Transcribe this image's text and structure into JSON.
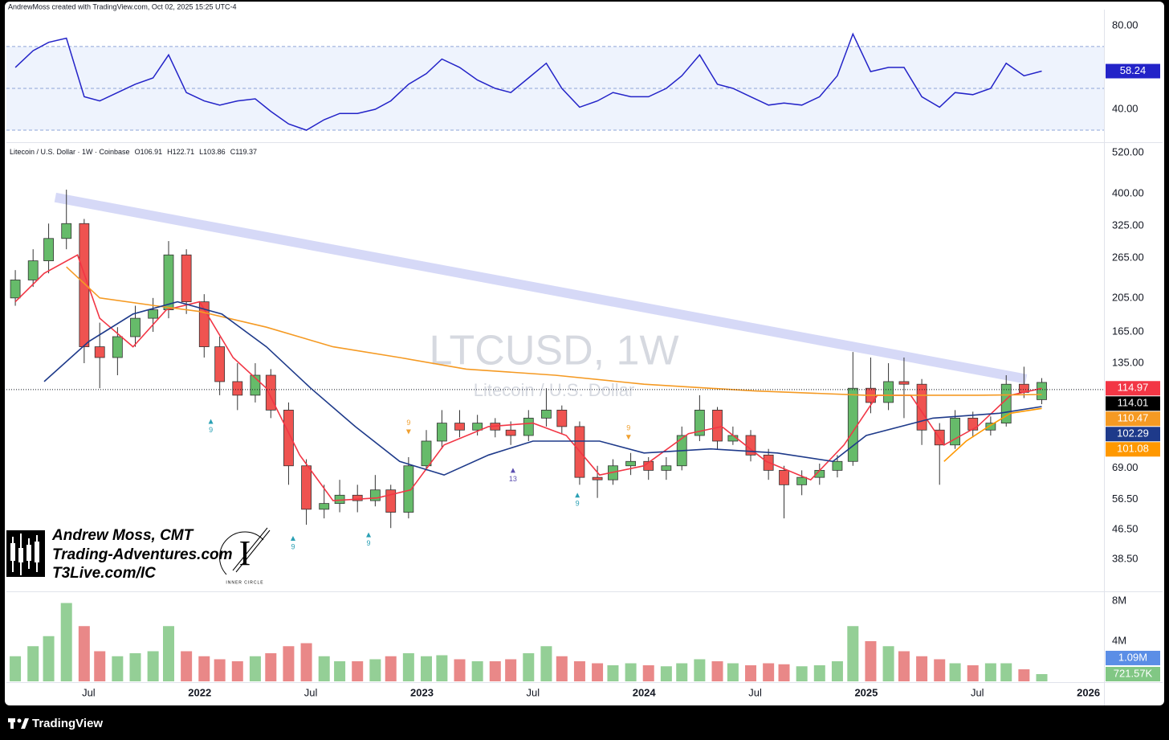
{
  "header": {
    "credit": "AndrewMoss created with TradingView.com, Oct 02, 2025 15:25 UTC-4",
    "brand": "TradingView"
  },
  "branding": {
    "name": "Andrew Moss, CMT",
    "site": "Trading-Adventures.com",
    "link": "T3Live.com/IC",
    "logo_text": "INNER CIRCLE"
  },
  "chart_data": {
    "type": "candlestick",
    "title": "LTCUSD, 1W",
    "subtitle": "Litecoin / U.S. Dollar",
    "legend_text": "Litecoin / U.S. Dollar · 1W · Coinbase",
    "ohlc_prefixes": [
      "O",
      "H",
      "L",
      "C"
    ],
    "log_scale": true,
    "grid": false,
    "up_color": "#66bb6a",
    "down_color": "#ef5350",
    "xlim": [
      2021.13,
      2026.07
    ],
    "xticks": [
      {
        "value": 2021.5,
        "label": "Jul"
      },
      {
        "value": 2022,
        "label": "2022"
      },
      {
        "value": 2022.5,
        "label": "Jul"
      },
      {
        "value": 2023,
        "label": "2023"
      },
      {
        "value": 2023.5,
        "label": "Jul"
      },
      {
        "value": 2024,
        "label": "2024"
      },
      {
        "value": 2024.5,
        "label": "Jul"
      },
      {
        "value": 2025,
        "label": "2025"
      },
      {
        "value": 2025.5,
        "label": "Jul"
      },
      {
        "value": 2026,
        "label": "2026"
      }
    ],
    "ylim": [
      31.5,
      547
    ],
    "yticks": [
      {
        "value": 520,
        "label": "520.00"
      },
      {
        "value": 400,
        "label": "400.00"
      },
      {
        "value": 325,
        "label": "325.00"
      },
      {
        "value": 265,
        "label": "265.00"
      },
      {
        "value": 205,
        "label": "205.00"
      },
      {
        "value": 165,
        "label": "165.00"
      },
      {
        "value": 135,
        "label": "135.00"
      },
      {
        "value": 69,
        "label": "69.00"
      },
      {
        "value": 56.5,
        "label": "56.50"
      },
      {
        "value": 46.5,
        "label": "46.50"
      },
      {
        "value": 38.5,
        "label": "38.50"
      }
    ],
    "x": [
      2021.17,
      2021.25,
      2021.32,
      2021.4,
      2021.48,
      2021.55,
      2021.63,
      2021.71,
      2021.79,
      2021.86,
      2021.94,
      2022.02,
      2022.09,
      2022.17,
      2022.25,
      2022.32,
      2022.4,
      2022.48,
      2022.56,
      2022.63,
      2022.71,
      2022.79,
      2022.86,
      2022.94,
      2023.02,
      2023.09,
      2023.17,
      2023.25,
      2023.33,
      2023.4,
      2023.48,
      2023.56,
      2023.63,
      2023.71,
      2023.79,
      2023.86,
      2023.94,
      2024.02,
      2024.1,
      2024.17,
      2024.25,
      2024.33,
      2024.4,
      2024.48,
      2024.56,
      2024.63,
      2024.71,
      2024.79,
      2024.87,
      2024.94,
      2025.02,
      2025.1,
      2025.17,
      2025.25,
      2025.33,
      2025.4,
      2025.48,
      2025.56,
      2025.63,
      2025.71,
      2025.79
    ],
    "open": [
      205,
      230,
      260,
      300,
      330,
      150,
      140,
      160,
      180,
      190,
      270,
      200,
      150,
      120,
      110,
      125,
      100,
      70,
      53,
      55,
      58,
      56,
      60,
      52,
      70,
      82,
      92,
      88,
      92,
      88,
      85,
      95,
      100,
      90,
      65,
      64,
      70,
      72,
      68,
      70,
      85,
      100,
      82,
      85,
      75,
      68,
      62,
      65,
      68,
      72,
      115,
      105,
      120,
      118,
      88,
      80,
      95,
      88,
      92,
      118,
      106.91
    ],
    "high": [
      245,
      280,
      330,
      410,
      340,
      175,
      170,
      195,
      205,
      295,
      280,
      210,
      160,
      135,
      135,
      130,
      105,
      73,
      62,
      64,
      62,
      66,
      62,
      74,
      88,
      100,
      100,
      97,
      95,
      93,
      100,
      115,
      103,
      93,
      70,
      73,
      76,
      74,
      74,
      90,
      110,
      102,
      90,
      88,
      78,
      70,
      68,
      71,
      75,
      145,
      140,
      135,
      140,
      122,
      92,
      100,
      99,
      96,
      125,
      132,
      122.71
    ],
    "low": [
      195,
      220,
      240,
      280,
      135,
      115,
      125,
      150,
      165,
      180,
      185,
      140,
      110,
      100,
      105,
      95,
      62,
      48,
      50,
      52,
      52,
      54,
      47,
      50,
      68,
      78,
      84,
      85,
      84,
      80,
      82,
      90,
      86,
      62,
      57,
      62,
      66,
      64,
      64,
      68,
      82,
      78,
      80,
      72,
      64,
      50,
      58,
      62,
      65,
      70,
      98,
      100,
      95,
      80,
      62,
      78,
      84,
      85,
      90,
      108,
      103.86
    ],
    "close": [
      230,
      260,
      300,
      330,
      150,
      140,
      160,
      180,
      190,
      270,
      200,
      150,
      120,
      110,
      125,
      100,
      70,
      53,
      55,
      58,
      56,
      60,
      52,
      70,
      82,
      92,
      88,
      92,
      88,
      85,
      95,
      100,
      90,
      65,
      64,
      70,
      72,
      68,
      70,
      85,
      100,
      82,
      85,
      75,
      68,
      62,
      65,
      68,
      72,
      115,
      105,
      120,
      118,
      88,
      80,
      95,
      88,
      92,
      118,
      112,
      119.37
    ],
    "last_price": 114.01,
    "series": [
      {
        "color": "#f23645",
        "x": [
          2021.17,
          2021.3,
          2021.45,
          2021.55,
          2021.7,
          2021.85,
          2022.0,
          2022.15,
          2022.3,
          2022.45,
          2022.6,
          2022.8,
          2022.95,
          2023.1,
          2023.3,
          2023.5,
          2023.65,
          2023.8,
          2024.0,
          2024.2,
          2024.35,
          2024.55,
          2024.75,
          2024.9,
          2025.05,
          2025.2,
          2025.35,
          2025.5,
          2025.65,
          2025.79
        ],
        "values": [
          200,
          240,
          270,
          180,
          150,
          190,
          200,
          140,
          115,
          75,
          56,
          57,
          60,
          80,
          90,
          92,
          85,
          66,
          70,
          86,
          90,
          72,
          64,
          80,
          110,
          110,
          80,
          90,
          110,
          114.97
        ]
      },
      {
        "color": "#f59a23",
        "x": [
          2021.4,
          2021.55,
          2021.8,
          2022.0,
          2022.3,
          2022.6,
          2022.9,
          2023.2,
          2023.6,
          2024.0,
          2024.5,
          2025.0,
          2025.5,
          2025.79
        ],
        "values": [
          250,
          205,
          195,
          188,
          170,
          150,
          140,
          130,
          125,
          118,
          113,
          110,
          110,
          110.47
        ]
      },
      {
        "color": "#1e3a8a",
        "x": [
          2021.3,
          2021.5,
          2021.7,
          2021.9,
          2022.1,
          2022.3,
          2022.5,
          2022.7,
          2022.9,
          2023.1,
          2023.3,
          2023.5,
          2023.8,
          2024.0,
          2024.3,
          2024.6,
          2024.85,
          2025.0,
          2025.3,
          2025.6,
          2025.79
        ],
        "values": [
          120,
          155,
          185,
          200,
          185,
          150,
          115,
          90,
          72,
          66,
          75,
          82,
          82,
          76,
          78,
          76,
          72,
          85,
          95,
          98,
          102.29
        ]
      },
      {
        "color": "#ff9800",
        "x": [
          2025.35,
          2025.45,
          2025.55,
          2025.65,
          2025.79
        ],
        "values": [
          72,
          82,
          90,
          98,
          101.08
        ]
      }
    ],
    "trendline": {
      "color": "#c9cdf5",
      "x": [
        2021.35,
        2025.72
      ],
      "values": [
        390,
        122
      ]
    },
    "markers": [
      {
        "x": 2022.05,
        "value": 93,
        "label": "9",
        "color": "#2aa0b4",
        "direction": "up"
      },
      {
        "x": 2022.42,
        "value": 44,
        "label": "9",
        "color": "#2aa0b4",
        "direction": "up"
      },
      {
        "x": 2022.76,
        "value": 45,
        "label": "9",
        "color": "#2aa0b4",
        "direction": "up"
      },
      {
        "x": 2022.94,
        "value": 87,
        "label": "9",
        "color": "#f0a030",
        "direction": "down"
      },
      {
        "x": 2023.41,
        "value": 68,
        "label": "13",
        "color": "#5c4fb0",
        "direction": "up"
      },
      {
        "x": 2023.7,
        "value": 58,
        "label": "9",
        "color": "#2aa0b4",
        "direction": "up"
      },
      {
        "x": 2023.93,
        "value": 84,
        "label": "9",
        "color": "#f0a030",
        "direction": "down"
      }
    ],
    "rsi": {
      "color": "#2323c8",
      "ylim": [
        25,
        86.5
      ],
      "yticks": [
        {
          "value": 80,
          "label": "80.00"
        },
        {
          "value": 40,
          "label": "40.00"
        }
      ],
      "bands": [
        70,
        50,
        30
      ],
      "values": [
        60,
        68,
        72,
        74,
        46,
        44,
        48,
        52,
        55,
        66,
        48,
        44,
        42,
        44,
        45,
        39,
        33,
        30,
        35,
        38,
        38,
        40,
        44,
        52,
        57,
        64,
        60,
        54,
        50,
        48,
        55,
        62,
        50,
        41,
        44,
        48,
        46,
        46,
        50,
        56,
        66,
        52,
        50,
        46,
        42,
        43,
        42,
        46,
        56,
        76,
        58,
        60,
        60,
        46,
        41,
        48,
        47,
        50,
        62,
        56,
        58.24
      ]
    },
    "volume": {
      "up_color": "#81c784",
      "down_color": "#e57373",
      "ylim": [
        0,
        8.8
      ],
      "yticks": [
        {
          "value": 8,
          "label": "8M"
        },
        {
          "value": 4,
          "label": "4M"
        }
      ],
      "values": [
        2.5,
        3.5,
        4.5,
        7.8,
        5.5,
        3.0,
        2.5,
        2.8,
        3.0,
        5.5,
        3.0,
        2.5,
        2.2,
        2.0,
        2.5,
        2.8,
        3.5,
        3.8,
        2.5,
        2.0,
        2.0,
        2.2,
        2.5,
        2.8,
        2.5,
        2.6,
        2.2,
        2.0,
        2.0,
        2.2,
        2.8,
        3.5,
        2.5,
        2.0,
        1.8,
        1.6,
        1.8,
        1.6,
        1.5,
        1.8,
        2.2,
        2.0,
        1.8,
        1.6,
        1.8,
        1.7,
        1.5,
        1.6,
        2.0,
        5.5,
        4.0,
        3.5,
        3.0,
        2.5,
        2.2,
        1.8,
        1.6,
        1.8,
        1.8,
        1.2,
        0.72157
      ],
      "value_labels": [
        null,
        null,
        null,
        null,
        null,
        null,
        null,
        null,
        null,
        null,
        null,
        null,
        null,
        null,
        null,
        null,
        null,
        null,
        null,
        null,
        null,
        null,
        null,
        null,
        null,
        null,
        null,
        null,
        null,
        null,
        null,
        null,
        null,
        null,
        null,
        null,
        null,
        null,
        null,
        null,
        null,
        null,
        null,
        null,
        null,
        null,
        null,
        null,
        null,
        null,
        null,
        null,
        null,
        null,
        null,
        null,
        null,
        null,
        null,
        null,
        "721.57K"
      ],
      "ma_label": {
        "value": 1.09,
        "label": "1.09M",
        "color": "#5b8ee6"
      }
    }
  }
}
